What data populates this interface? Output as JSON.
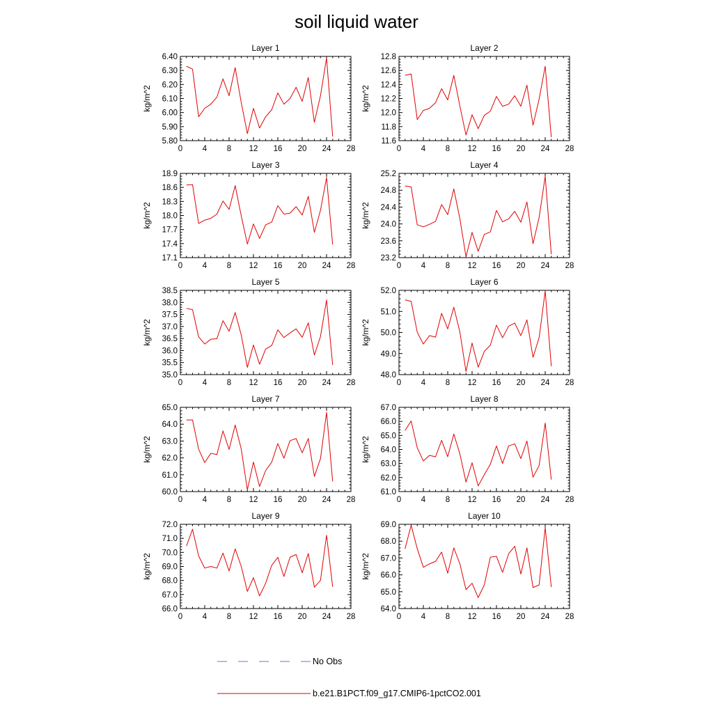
{
  "figure": {
    "title": "soil liquid water"
  },
  "legend": {
    "items": [
      {
        "label": "No Obs",
        "color": "#6f6fd0",
        "dash": "dashed"
      },
      {
        "label": "b.e21.B1PCT.f09_g17.CMIP6-1pctCO2.001",
        "color": "#e00000",
        "dash": "solid"
      }
    ]
  },
  "chart_data": [
    {
      "type": "line",
      "title": "Layer 1",
      "xlabel": "",
      "ylabel": "kg/m^2",
      "xlim": [
        0,
        28
      ],
      "ylim": [
        5.8,
        6.4
      ],
      "xticks": [
        0,
        4,
        8,
        12,
        16,
        20,
        24,
        28
      ],
      "yticks": [
        5.8,
        5.9,
        6.0,
        6.1,
        6.2,
        6.3,
        6.4
      ],
      "ytick_labels": [
        "5.80",
        "5.90",
        "6.00",
        "6.10",
        "6.20",
        "6.30",
        "6.40"
      ],
      "series": [
        {
          "name": "b.e21.B1PCT.f09_g17.CMIP6-1pctCO2.001",
          "color": "#e00000",
          "x": [
            1,
            2,
            3,
            4,
            5,
            6,
            7,
            8,
            9,
            10,
            11,
            12,
            13,
            14,
            15,
            16,
            17,
            18,
            19,
            20,
            21,
            22,
            23,
            24,
            25
          ],
          "values": [
            6.33,
            6.31,
            5.97,
            6.03,
            6.06,
            6.11,
            6.24,
            6.12,
            6.32,
            6.07,
            5.85,
            6.03,
            5.89,
            5.97,
            6.02,
            6.14,
            6.06,
            6.1,
            6.18,
            6.08,
            6.25,
            5.93,
            6.12,
            6.39,
            5.83
          ]
        }
      ]
    },
    {
      "type": "line",
      "title": "Layer 2",
      "xlabel": "",
      "ylabel": "kg/m^2",
      "xlim": [
        0,
        28
      ],
      "ylim": [
        11.6,
        12.8
      ],
      "xticks": [
        0,
        4,
        8,
        12,
        16,
        20,
        24,
        28
      ],
      "yticks": [
        11.6,
        11.8,
        12.0,
        12.2,
        12.4,
        12.6,
        12.8
      ],
      "ytick_labels": [
        "11.6",
        "11.8",
        "12.0",
        "12.2",
        "12.4",
        "12.6",
        "12.8"
      ],
      "series": [
        {
          "name": "b.e21.B1PCT.f09_g17.CMIP6-1pctCO2.001",
          "color": "#e00000",
          "x": [
            1,
            2,
            3,
            4,
            5,
            6,
            7,
            8,
            9,
            10,
            11,
            12,
            13,
            14,
            15,
            16,
            17,
            18,
            19,
            20,
            21,
            22,
            23,
            24,
            25
          ],
          "values": [
            12.53,
            12.55,
            11.9,
            12.03,
            12.06,
            12.14,
            12.34,
            12.18,
            12.53,
            12.09,
            11.68,
            11.97,
            11.77,
            11.96,
            12.02,
            12.23,
            12.09,
            12.12,
            12.24,
            12.09,
            12.39,
            11.82,
            12.19,
            12.66,
            11.65
          ]
        }
      ]
    },
    {
      "type": "line",
      "title": "Layer 3",
      "xlabel": "",
      "ylabel": "kg/m^2",
      "xlim": [
        0,
        28
      ],
      "ylim": [
        17.1,
        18.9
      ],
      "xticks": [
        0,
        4,
        8,
        12,
        16,
        20,
        24,
        28
      ],
      "yticks": [
        17.1,
        17.4,
        17.7,
        18.0,
        18.3,
        18.6,
        18.9
      ],
      "ytick_labels": [
        "17.1",
        "17.4",
        "17.7",
        "18.0",
        "18.3",
        "18.6",
        "18.9"
      ],
      "series": [
        {
          "name": "b.e21.B1PCT.f09_g17.CMIP6-1pctCO2.001",
          "color": "#e00000",
          "x": [
            1,
            2,
            3,
            4,
            5,
            6,
            7,
            8,
            9,
            10,
            11,
            12,
            13,
            14,
            15,
            16,
            17,
            18,
            19,
            20,
            21,
            22,
            23,
            24,
            25
          ],
          "values": [
            18.65,
            18.66,
            17.83,
            17.9,
            17.94,
            18.03,
            18.31,
            18.13,
            18.64,
            17.99,
            17.39,
            17.82,
            17.51,
            17.8,
            17.86,
            18.21,
            18.03,
            18.05,
            18.19,
            18.01,
            18.41,
            17.64,
            18.11,
            18.81,
            17.38
          ]
        }
      ]
    },
    {
      "type": "line",
      "title": "Layer 4",
      "xlabel": "",
      "ylabel": "kg/m^2",
      "xlim": [
        0,
        28
      ],
      "ylim": [
        23.2,
        25.2
      ],
      "xticks": [
        0,
        4,
        8,
        12,
        16,
        20,
        24,
        28
      ],
      "yticks": [
        23.2,
        23.6,
        24.0,
        24.4,
        24.8,
        25.2
      ],
      "ytick_labels": [
        "23.2",
        "23.6",
        "24.0",
        "24.4",
        "24.8",
        "25.2"
      ],
      "series": [
        {
          "name": "b.e21.B1PCT.f09_g17.CMIP6-1pctCO2.001",
          "color": "#e00000",
          "x": [
            1,
            2,
            3,
            4,
            5,
            6,
            7,
            8,
            9,
            10,
            11,
            12,
            13,
            14,
            15,
            16,
            17,
            18,
            19,
            20,
            21,
            22,
            23,
            24,
            25
          ],
          "values": [
            24.9,
            24.88,
            23.98,
            23.93,
            23.99,
            24.06,
            24.46,
            24.22,
            24.83,
            24.12,
            23.22,
            23.8,
            23.35,
            23.75,
            23.81,
            24.32,
            24.05,
            24.12,
            24.3,
            24.04,
            24.52,
            23.53,
            24.15,
            25.13,
            23.28
          ]
        }
      ]
    },
    {
      "type": "line",
      "title": "Layer 5",
      "xlabel": "",
      "ylabel": "kg/m^2",
      "xlim": [
        0,
        28
      ],
      "ylim": [
        35.0,
        38.5
      ],
      "xticks": [
        0,
        4,
        8,
        12,
        16,
        20,
        24,
        28
      ],
      "yticks": [
        35.0,
        35.5,
        36.0,
        36.5,
        37.0,
        37.5,
        38.0,
        38.5
      ],
      "ytick_labels": [
        "35.0",
        "35.5",
        "36.0",
        "36.5",
        "37.0",
        "37.5",
        "38.0",
        "38.5"
      ],
      "series": [
        {
          "name": "b.e21.B1PCT.f09_g17.CMIP6-1pctCO2.001",
          "color": "#e00000",
          "x": [
            1,
            2,
            3,
            4,
            5,
            6,
            7,
            8,
            9,
            10,
            11,
            12,
            13,
            14,
            15,
            16,
            17,
            18,
            19,
            20,
            21,
            22,
            23,
            24,
            25
          ],
          "values": [
            37.75,
            37.7,
            36.57,
            36.27,
            36.47,
            36.49,
            37.24,
            36.8,
            37.58,
            36.64,
            35.3,
            36.23,
            35.43,
            36.06,
            36.21,
            36.86,
            36.54,
            36.73,
            36.9,
            36.55,
            37.15,
            35.81,
            36.58,
            38.1,
            35.4
          ]
        }
      ]
    },
    {
      "type": "line",
      "title": "Layer 6",
      "xlabel": "",
      "ylabel": "kg/m^2",
      "xlim": [
        0,
        28
      ],
      "ylim": [
        48.0,
        52.0
      ],
      "xticks": [
        0,
        4,
        8,
        12,
        16,
        20,
        24,
        28
      ],
      "yticks": [
        48.0,
        49.0,
        50.0,
        51.0,
        52.0
      ],
      "ytick_labels": [
        "48.0",
        "49.0",
        "50.0",
        "51.0",
        "52.0"
      ],
      "series": [
        {
          "name": "b.e21.B1PCT.f09_g17.CMIP6-1pctCO2.001",
          "color": "#e00000",
          "x": [
            1,
            2,
            3,
            4,
            5,
            6,
            7,
            8,
            9,
            10,
            11,
            12,
            13,
            14,
            15,
            16,
            17,
            18,
            19,
            20,
            21,
            22,
            23,
            24,
            25
          ],
          "values": [
            51.55,
            51.48,
            50.01,
            49.45,
            49.85,
            49.78,
            50.91,
            50.17,
            51.2,
            50.02,
            48.15,
            49.5,
            48.35,
            49.1,
            49.4,
            50.35,
            49.75,
            50.3,
            50.45,
            49.85,
            50.6,
            48.82,
            49.75,
            51.97,
            48.4
          ]
        }
      ]
    },
    {
      "type": "line",
      "title": "Layer 7",
      "xlabel": "",
      "ylabel": "kg/m^2",
      "xlim": [
        0,
        28
      ],
      "ylim": [
        60.0,
        65.0
      ],
      "xticks": [
        0,
        4,
        8,
        12,
        16,
        20,
        24,
        28
      ],
      "yticks": [
        60.0,
        61.0,
        62.0,
        63.0,
        64.0,
        65.0
      ],
      "ytick_labels": [
        "60.0",
        "61.0",
        "62.0",
        "63.0",
        "64.0",
        "65.0"
      ],
      "series": [
        {
          "name": "b.e21.B1PCT.f09_g17.CMIP6-1pctCO2.001",
          "color": "#e00000",
          "x": [
            1,
            2,
            3,
            4,
            5,
            6,
            7,
            8,
            9,
            10,
            11,
            12,
            13,
            14,
            15,
            16,
            17,
            18,
            19,
            20,
            21,
            22,
            23,
            24,
            25
          ],
          "values": [
            64.25,
            64.25,
            62.52,
            61.72,
            62.27,
            62.2,
            63.6,
            62.5,
            63.95,
            62.52,
            60.1,
            61.75,
            60.3,
            61.25,
            61.75,
            62.85,
            61.98,
            63.02,
            63.15,
            62.3,
            63.15,
            60.9,
            61.95,
            64.7,
            60.6
          ]
        }
      ]
    },
    {
      "type": "line",
      "title": "Layer 8",
      "xlabel": "",
      "ylabel": "kg/m^2",
      "xlim": [
        0,
        28
      ],
      "ylim": [
        61.0,
        67.0
      ],
      "xticks": [
        0,
        4,
        8,
        12,
        16,
        20,
        24,
        28
      ],
      "yticks": [
        61.0,
        62.0,
        63.0,
        64.0,
        65.0,
        66.0,
        67.0
      ],
      "ytick_labels": [
        "61.0",
        "62.0",
        "63.0",
        "64.0",
        "65.0",
        "66.0",
        "67.0"
      ],
      "series": [
        {
          "name": "b.e21.B1PCT.f09_g17.CMIP6-1pctCO2.001",
          "color": "#e00000",
          "x": [
            1,
            2,
            3,
            4,
            5,
            6,
            7,
            8,
            9,
            10,
            11,
            12,
            13,
            14,
            15,
            16,
            17,
            18,
            19,
            20,
            21,
            22,
            23,
            24,
            25
          ],
          "values": [
            65.35,
            66.03,
            64.12,
            63.18,
            63.58,
            63.48,
            64.65,
            63.48,
            65.1,
            63.68,
            61.68,
            63.05,
            61.4,
            62.2,
            62.95,
            64.25,
            63.0,
            64.25,
            64.4,
            63.35,
            64.6,
            62.02,
            62.85,
            65.88,
            61.85
          ]
        }
      ]
    },
    {
      "type": "line",
      "title": "Layer 9",
      "xlabel": "",
      "ylabel": "kg/m^2",
      "xlim": [
        0,
        28
      ],
      "ylim": [
        66.0,
        72.0
      ],
      "xticks": [
        0,
        4,
        8,
        12,
        16,
        20,
        24,
        28
      ],
      "yticks": [
        66.0,
        67.0,
        68.0,
        69.0,
        70.0,
        71.0,
        72.0
      ],
      "ytick_labels": [
        "66.0",
        "67.0",
        "68.0",
        "69.0",
        "70.0",
        "71.0",
        "72.0"
      ],
      "series": [
        {
          "name": "b.e21.B1PCT.f09_g17.CMIP6-1pctCO2.001",
          "color": "#e00000",
          "x": [
            1,
            2,
            3,
            4,
            5,
            6,
            7,
            8,
            9,
            10,
            11,
            12,
            13,
            14,
            15,
            16,
            17,
            18,
            19,
            20,
            21,
            22,
            23,
            24,
            25
          ],
          "values": [
            70.45,
            71.65,
            69.75,
            68.88,
            69.0,
            68.88,
            69.95,
            68.67,
            70.25,
            69.0,
            67.22,
            68.2,
            66.9,
            67.8,
            69.08,
            69.65,
            68.28,
            69.65,
            69.85,
            68.55,
            69.92,
            67.52,
            68.0,
            71.22,
            67.55
          ]
        }
      ]
    },
    {
      "type": "line",
      "title": "Layer 10",
      "xlabel": "",
      "ylabel": "kg/m^2",
      "xlim": [
        0,
        28
      ],
      "ylim": [
        64.0,
        69.0
      ],
      "xticks": [
        0,
        4,
        8,
        12,
        16,
        20,
        24,
        28
      ],
      "yticks": [
        64.0,
        65.0,
        66.0,
        67.0,
        68.0,
        69.0
      ],
      "ytick_labels": [
        "64.0",
        "65.0",
        "66.0",
        "67.0",
        "68.0",
        "69.0"
      ],
      "series": [
        {
          "name": "b.e21.B1PCT.f09_g17.CMIP6-1pctCO2.001",
          "color": "#e00000",
          "x": [
            1,
            2,
            3,
            4,
            5,
            6,
            7,
            8,
            9,
            10,
            11,
            12,
            13,
            14,
            15,
            16,
            17,
            18,
            19,
            20,
            21,
            22,
            23,
            24,
            25
          ],
          "values": [
            67.55,
            68.95,
            67.55,
            66.45,
            66.65,
            66.8,
            67.35,
            66.1,
            67.6,
            66.65,
            65.12,
            65.5,
            64.65,
            65.4,
            67.05,
            67.1,
            66.15,
            67.25,
            67.7,
            66.05,
            67.6,
            65.25,
            65.4,
            68.8,
            65.28
          ]
        }
      ]
    }
  ]
}
